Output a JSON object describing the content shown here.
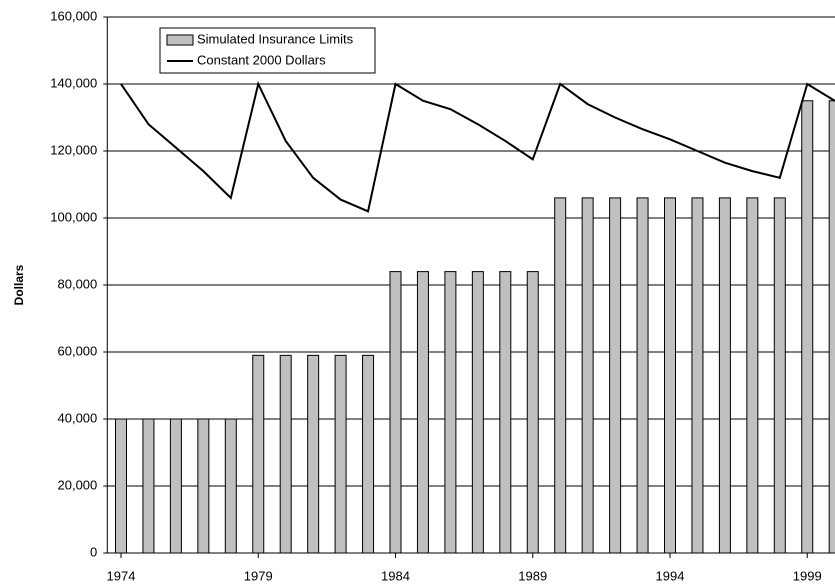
{
  "chart_data": {
    "type": "bar-line",
    "y_label": "Dollars",
    "x": [
      1974,
      1975,
      1976,
      1977,
      1978,
      1979,
      1980,
      1981,
      1982,
      1983,
      1984,
      1985,
      1986,
      1987,
      1988,
      1989,
      1990,
      1991,
      1992,
      1993,
      1994,
      1995,
      1996,
      1997,
      1998,
      1999,
      2000
    ],
    "series": [
      {
        "name": "Simulated Insurance Limits",
        "kind": "bar",
        "color": "#c0c0c0",
        "values": [
          40000,
          40000,
          40000,
          40000,
          40000,
          59000,
          59000,
          59000,
          59000,
          59000,
          84000,
          84000,
          84000,
          84000,
          84000,
          84000,
          106000,
          106000,
          106000,
          106000,
          106000,
          106000,
          106000,
          106000,
          106000,
          135000,
          135000
        ]
      },
      {
        "name": "Constant 2000 Dollars",
        "kind": "line",
        "color": "#000000",
        "values": [
          140000,
          128000,
          121000,
          114000,
          106000,
          140000,
          123000,
          112000,
          105500,
          102000,
          140000,
          135000,
          132500,
          128000,
          123000,
          117500,
          140000,
          134000,
          130000,
          126500,
          123500,
          120000,
          116500,
          114000,
          112000,
          140000,
          135000
        ]
      }
    ],
    "xlim": [
      1973.5,
      2000.5
    ],
    "xticks": [
      1974,
      1979,
      1984,
      1989,
      1994,
      1999
    ],
    "ylim": [
      0,
      160000
    ],
    "yticks": [
      {
        "value": 0,
        "label": "0"
      },
      {
        "value": 20000,
        "label": "20,000"
      },
      {
        "value": 40000,
        "label": "40,000"
      },
      {
        "value": 60000,
        "label": "60,000"
      },
      {
        "value": 80000,
        "label": "80,000"
      },
      {
        "value": 100000,
        "label": "100,000"
      },
      {
        "value": 120000,
        "label": "120,000"
      },
      {
        "value": 140000,
        "label": "140,000"
      },
      {
        "value": 160000,
        "label": "160,000"
      }
    ],
    "grid": true
  }
}
